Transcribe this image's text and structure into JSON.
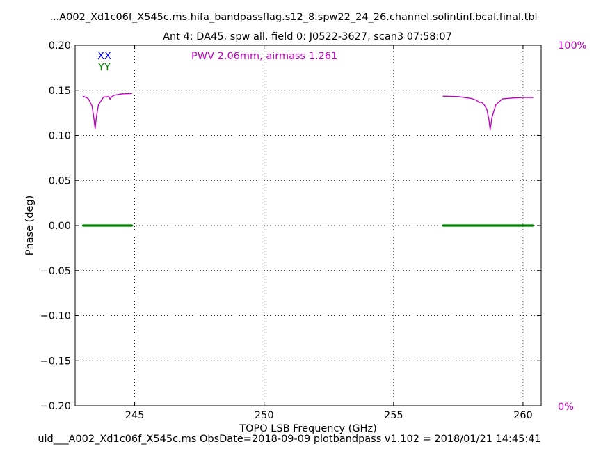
{
  "header": {
    "title": "...A002_Xd1c06f_X545c.ms.hifa_bandpassflag.s12_8.spw22_24_26.channel.solintinf.bcal.final.tbl",
    "subtitle": "Ant 4: DA45,  spw all,  field 0: J0522-3627,  scan3  07:58:07"
  },
  "footer": {
    "text": "uid___A002_Xd1c06f_X545c.ms  ObsDate=2018-09-09   plotbandpass v1.102 = 2018/01/21 14:45:41"
  },
  "annotation": {
    "pwv_text": "PWV 2.06mm, airmass 1.261",
    "color": "#bf00bf"
  },
  "chart_data": {
    "type": "line",
    "title": "Ant 4: DA45,  spw all,  field 0: J0522-3627,  scan3  07:58:07",
    "xlabel": "TOPO LSB Frequency (GHz)",
    "ylabel": "Phase (deg)",
    "xlim": [
      242.7,
      260.7
    ],
    "ylim": [
      -0.2,
      0.2
    ],
    "x_ticks": [
      245,
      250,
      255,
      260
    ],
    "x_tick_labels": [
      "245",
      "250",
      "255",
      "260"
    ],
    "y_ticks": [
      -0.2,
      -0.15,
      -0.1,
      -0.05,
      0.0,
      0.05,
      0.1,
      0.15,
      0.2
    ],
    "y_tick_labels": [
      "−0.20",
      "−0.15",
      "−0.10",
      "−0.05",
      "0.00",
      "0.05",
      "0.10",
      "0.15",
      "0.20"
    ],
    "grid": true,
    "legend": {
      "placement": "top-left",
      "entries": [
        {
          "label": "XX",
          "color": "#0000ff"
        },
        {
          "label": "YY",
          "color": "#008000"
        }
      ]
    },
    "right_axis": {
      "labels": [
        "100%",
        "0%"
      ],
      "color": "#bf00bf"
    },
    "series": [
      {
        "name": "YY",
        "color": "#008000",
        "segments": [
          {
            "x": [
              243.0,
              244.9
            ],
            "y": [
              0.0,
              0.0
            ]
          },
          {
            "x": [
              256.9,
              260.4
            ],
            "y": [
              0.0,
              0.0
            ]
          }
        ]
      },
      {
        "name": "PWV",
        "color": "#bf00bf",
        "segments": [
          {
            "x": [
              243.0,
              243.2,
              243.35,
              243.42,
              243.47,
              243.52,
              243.6,
              243.8,
              244.0,
              244.05,
              244.1,
              244.2,
              244.5,
              244.9
            ],
            "y": [
              0.1435,
              0.141,
              0.133,
              0.12,
              0.107,
              0.12,
              0.134,
              0.1425,
              0.143,
              0.14,
              0.1425,
              0.1445,
              0.146,
              0.1465
            ]
          },
          {
            "x": [
              256.9,
              257.5,
              258.0,
              258.2,
              258.3,
              258.4,
              258.5,
              258.6,
              258.68,
              258.73,
              258.8,
              258.95,
              259.2,
              259.6,
              260.0,
              260.4
            ],
            "y": [
              0.1435,
              0.143,
              0.141,
              0.139,
              0.1365,
              0.137,
              0.134,
              0.129,
              0.118,
              0.106,
              0.12,
              0.134,
              0.1405,
              0.1415,
              0.142,
              0.142
            ]
          }
        ]
      }
    ]
  }
}
